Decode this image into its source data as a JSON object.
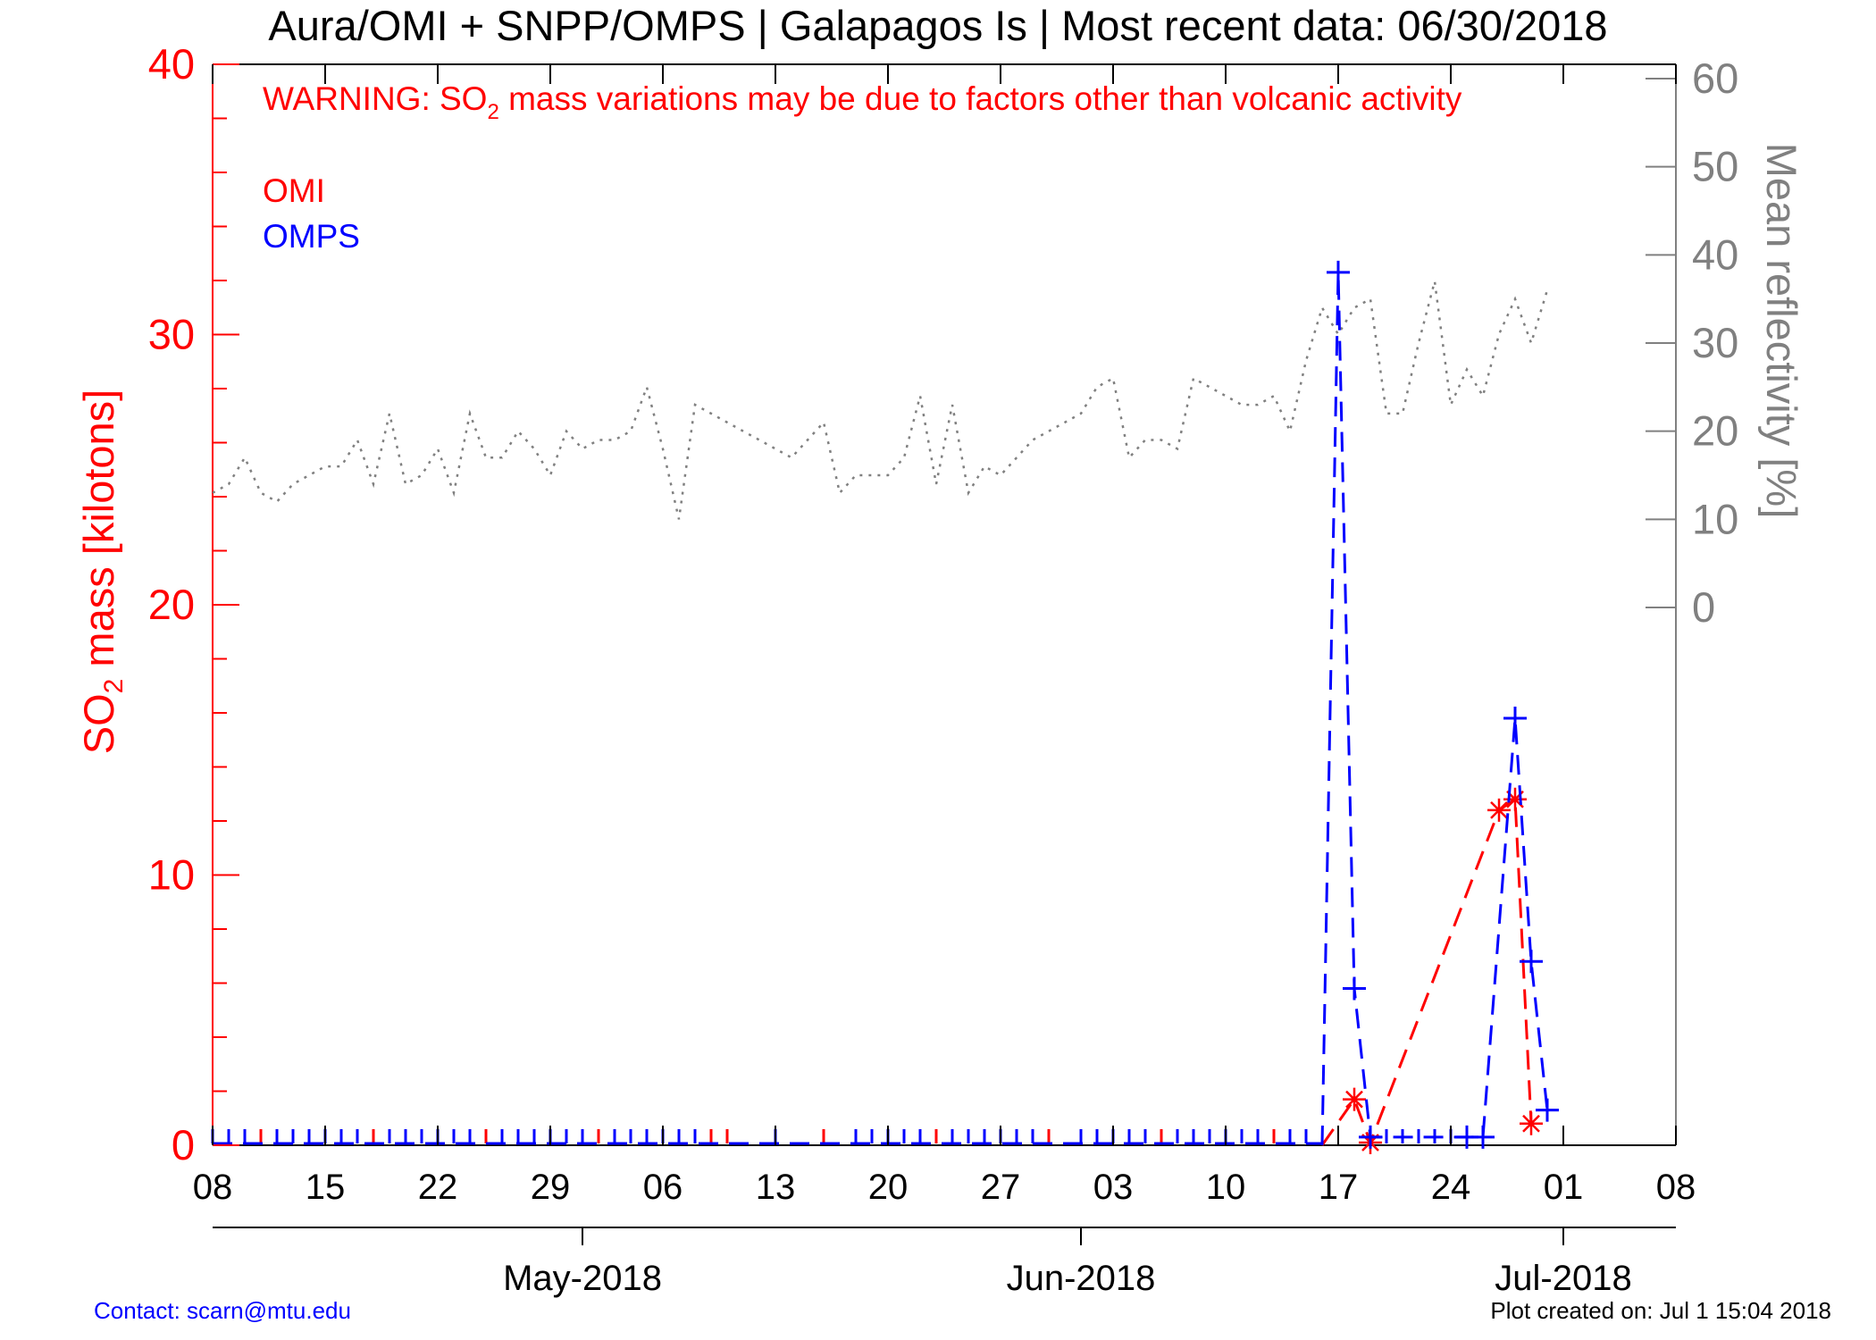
{
  "title": "Aura/OMI + SNPP/OMPS | Galapagos Is | Most recent data: 06/30/2018",
  "warning": {
    "prefix": "WARNING: SO",
    "subscript": "2",
    "suffix": " mass variations may be due to factors other than volcanic activity"
  },
  "footer": {
    "contact": "Contact: scarn@mtu.edu",
    "created": "Plot created on: Jul  1 15:04 2018"
  },
  "colors": {
    "omi": "#ff0000",
    "omps": "#0000ff",
    "reflectivity": "#808080",
    "axis_left": "#ff0000",
    "axis_right": "#808080",
    "frame": "#000000",
    "contact": "#0000ff"
  },
  "chart_data": {
    "type": "line",
    "title": "Aura/OMI + SNPP/OMPS | Galapagos Is | Most recent data: 06/30/2018",
    "x_range": [
      "2018-04-08",
      "2018-07-08"
    ],
    "x_tick_labels": [
      "08",
      "15",
      "22",
      "29",
      "06",
      "13",
      "20",
      "27",
      "03",
      "10",
      "17",
      "24",
      "01",
      "08"
    ],
    "month_labels": [
      "May-2018",
      "Jun-2018",
      "Jul-2018"
    ],
    "y_left": {
      "label_prefix": "SO",
      "label_subscript": "2",
      "label_suffix": " mass [kilotons]",
      "range": [
        0,
        40
      ],
      "ticks": [
        "0",
        "10",
        "20",
        "30",
        "40"
      ]
    },
    "y_right": {
      "label": "Mean reflectivity [%]",
      "range": [
        0,
        60
      ],
      "ticks": [
        "0",
        "10",
        "20",
        "30",
        "40",
        "50",
        "60"
      ]
    },
    "series": [
      {
        "name": "OMI",
        "axis": "left",
        "style": "dashed",
        "marker": "star",
        "points": [
          [
            "2018-06-16",
            0.0
          ],
          [
            "2018-06-18",
            1.7
          ],
          [
            "2018-06-19",
            0.1
          ],
          [
            "2018-06-27",
            12.4
          ],
          [
            "2018-06-28",
            12.8
          ],
          [
            "2018-06-29",
            0.8
          ]
        ],
        "zero_days": [
          "2018-04-11",
          "2018-04-18",
          "2018-04-25",
          "2018-05-02",
          "2018-05-09",
          "2018-05-10",
          "2018-05-16",
          "2018-05-23",
          "2018-05-30",
          "2018-06-06",
          "2018-06-13"
        ]
      },
      {
        "name": "OMPS",
        "axis": "left",
        "style": "dashed",
        "marker": "plus",
        "points": [
          [
            "2018-06-16",
            0.0
          ],
          [
            "2018-06-17",
            32.3
          ],
          [
            "2018-06-18",
            5.8
          ],
          [
            "2018-06-19",
            0.3
          ],
          [
            "2018-06-25",
            0.3
          ],
          [
            "2018-06-26",
            0.3
          ],
          [
            "2018-06-28",
            15.8
          ],
          [
            "2018-06-29",
            6.8
          ],
          [
            "2018-06-30",
            1.3
          ]
        ],
        "zero_days": [
          "2018-04-08",
          "2018-04-09",
          "2018-04-10",
          "2018-04-12",
          "2018-04-13",
          "2018-04-14",
          "2018-04-15",
          "2018-04-16",
          "2018-04-17",
          "2018-04-19",
          "2018-04-20",
          "2018-04-21",
          "2018-04-22",
          "2018-04-23",
          "2018-04-24",
          "2018-04-26",
          "2018-04-27",
          "2018-04-28",
          "2018-04-29",
          "2018-04-30",
          "2018-05-01",
          "2018-05-03",
          "2018-05-04",
          "2018-05-05",
          "2018-05-06",
          "2018-05-07",
          "2018-05-08",
          "2018-05-13",
          "2018-05-18",
          "2018-05-19",
          "2018-05-20",
          "2018-05-21",
          "2018-05-22",
          "2018-05-24",
          "2018-05-25",
          "2018-05-26",
          "2018-05-27",
          "2018-05-28",
          "2018-05-29",
          "2018-06-01",
          "2018-06-02",
          "2018-06-03",
          "2018-06-04",
          "2018-06-05",
          "2018-06-07",
          "2018-06-08",
          "2018-06-09",
          "2018-06-10",
          "2018-06-11",
          "2018-06-12",
          "2018-06-14",
          "2018-06-15",
          "2018-06-20",
          "2018-06-21",
          "2018-06-22",
          "2018-06-23",
          "2018-06-24"
        ]
      },
      {
        "name": "Mean reflectivity",
        "axis": "right",
        "style": "dotted",
        "points": [
          [
            "2018-04-08",
            13
          ],
          [
            "2018-04-09",
            14
          ],
          [
            "2018-04-10",
            17
          ],
          [
            "2018-04-11",
            13
          ],
          [
            "2018-04-12",
            12
          ],
          [
            "2018-04-13",
            14
          ],
          [
            "2018-04-14",
            15
          ],
          [
            "2018-04-15",
            16
          ],
          [
            "2018-04-16",
            16
          ],
          [
            "2018-04-17",
            19
          ],
          [
            "2018-04-18",
            14
          ],
          [
            "2018-04-19",
            22
          ],
          [
            "2018-04-20",
            14
          ],
          [
            "2018-04-21",
            15
          ],
          [
            "2018-04-22",
            18
          ],
          [
            "2018-04-23",
            13
          ],
          [
            "2018-04-24",
            22
          ],
          [
            "2018-04-25",
            17
          ],
          [
            "2018-04-26",
            17
          ],
          [
            "2018-04-27",
            20
          ],
          [
            "2018-04-28",
            18
          ],
          [
            "2018-04-29",
            15
          ],
          [
            "2018-04-30",
            20
          ],
          [
            "2018-05-01",
            18
          ],
          [
            "2018-05-02",
            19
          ],
          [
            "2018-05-03",
            19
          ],
          [
            "2018-05-04",
            20
          ],
          [
            "2018-05-05",
            25
          ],
          [
            "2018-05-06",
            18
          ],
          [
            "2018-05-07",
            10
          ],
          [
            "2018-05-08",
            23
          ],
          [
            "2018-05-09",
            22
          ],
          [
            "2018-05-10",
            21
          ],
          [
            "2018-05-11",
            20
          ],
          [
            "2018-05-12",
            19
          ],
          [
            "2018-05-13",
            18
          ],
          [
            "2018-05-14",
            17
          ],
          [
            "2018-05-15",
            19
          ],
          [
            "2018-05-16",
            21
          ],
          [
            "2018-05-17",
            13
          ],
          [
            "2018-05-18",
            15
          ],
          [
            "2018-05-19",
            15
          ],
          [
            "2018-05-20",
            15
          ],
          [
            "2018-05-21",
            17
          ],
          [
            "2018-05-22",
            24
          ],
          [
            "2018-05-23",
            14
          ],
          [
            "2018-05-24",
            23
          ],
          [
            "2018-05-25",
            13
          ],
          [
            "2018-05-26",
            16
          ],
          [
            "2018-05-27",
            15
          ],
          [
            "2018-05-28",
            17
          ],
          [
            "2018-05-29",
            19
          ],
          [
            "2018-05-30",
            20
          ],
          [
            "2018-05-31",
            21
          ],
          [
            "2018-06-01",
            22
          ],
          [
            "2018-06-02",
            25
          ],
          [
            "2018-06-03",
            26
          ],
          [
            "2018-06-04",
            17
          ],
          [
            "2018-06-05",
            19
          ],
          [
            "2018-06-06",
            19
          ],
          [
            "2018-06-07",
            18
          ],
          [
            "2018-06-08",
            26
          ],
          [
            "2018-06-09",
            25
          ],
          [
            "2018-06-10",
            24
          ],
          [
            "2018-06-11",
            23
          ],
          [
            "2018-06-12",
            23
          ],
          [
            "2018-06-13",
            24
          ],
          [
            "2018-06-14",
            20
          ],
          [
            "2018-06-15",
            28
          ],
          [
            "2018-06-16",
            34
          ],
          [
            "2018-06-17",
            31
          ],
          [
            "2018-06-18",
            34
          ],
          [
            "2018-06-19",
            35
          ],
          [
            "2018-06-20",
            22
          ],
          [
            "2018-06-21",
            22
          ],
          [
            "2018-06-22",
            30
          ],
          [
            "2018-06-23",
            37
          ],
          [
            "2018-06-24",
            23
          ],
          [
            "2018-06-25",
            27
          ],
          [
            "2018-06-26",
            24
          ],
          [
            "2018-06-27",
            31
          ],
          [
            "2018-06-28",
            35
          ],
          [
            "2018-06-29",
            30
          ],
          [
            "2018-06-30",
            36
          ]
        ]
      }
    ],
    "legend": {
      "position": "top-left",
      "entries": [
        "OMI",
        "OMPS"
      ]
    },
    "grid": false
  }
}
